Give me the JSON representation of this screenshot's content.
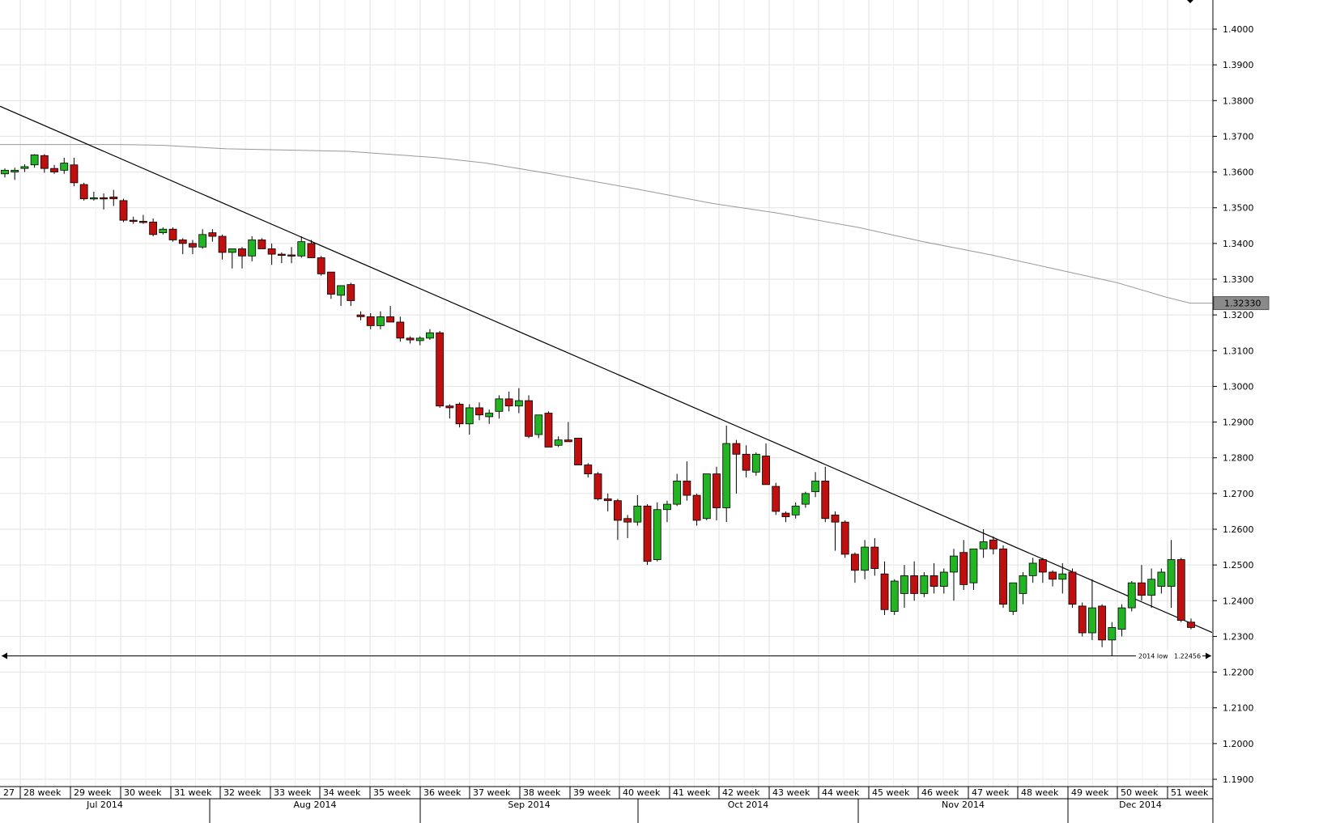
{
  "colors": {
    "up": "#22b422",
    "down": "#bf0f0f",
    "ma": "#999999",
    "trend": "#000000",
    "grid": "#e2e2e2",
    "price_box": "#8a8a8a"
  },
  "chart_data": {
    "type": "candlestick",
    "instrument_hint": "daily candles, weeks 27-51 2014",
    "ylim": [
      1.185,
      1.408
    ],
    "y_ticks": [
      "1.4000",
      "1.3900",
      "1.3800",
      "1.3700",
      "1.3600",
      "1.3500",
      "1.3400",
      "1.3300",
      "1.3200",
      "1.3100",
      "1.3000",
      "1.2900",
      "1.2800",
      "1.2700",
      "1.2600",
      "1.2500",
      "1.2400",
      "1.2300",
      "1.2200",
      "1.2100",
      "1.2000",
      "1.1900"
    ],
    "week_labels": [
      "27",
      "28 week",
      "29 week",
      "30 week",
      "31 week",
      "32 week",
      "33 week",
      "34 week",
      "35 week",
      "36 week",
      "37 week",
      "38 week",
      "39 week",
      "40 week",
      "41 week",
      "42 week",
      "43 week",
      "44 week",
      "45 week",
      "46 week",
      "47 week",
      "48 week",
      "49 week",
      "50 week",
      "51 week"
    ],
    "month_labels": [
      "Jul 2014",
      "Aug 2014",
      "Sep 2014",
      "Oct 2014",
      "Nov 2014",
      "Dec 2014"
    ],
    "candles": [
      [
        1.3595,
        1.361,
        1.3585,
        1.3605
      ],
      [
        1.36,
        1.3612,
        1.3578,
        1.3605
      ],
      [
        1.361,
        1.3622,
        1.36,
        1.3615
      ],
      [
        1.362,
        1.365,
        1.3612,
        1.3648
      ],
      [
        1.3646,
        1.365,
        1.3598,
        1.361
      ],
      [
        1.361,
        1.362,
        1.3595,
        1.36
      ],
      [
        1.3605,
        1.364,
        1.3595,
        1.3625
      ],
      [
        1.362,
        1.364,
        1.356,
        1.357
      ],
      [
        1.3565,
        1.357,
        1.352,
        1.3525
      ],
      [
        1.3525,
        1.3545,
        1.352,
        1.3528
      ],
      [
        1.3528,
        1.354,
        1.3495,
        1.3525
      ],
      [
        1.353,
        1.355,
        1.3505,
        1.3525
      ],
      [
        1.352,
        1.3525,
        1.346,
        1.3465
      ],
      [
        1.3465,
        1.3475,
        1.3455,
        1.3462
      ],
      [
        1.3462,
        1.348,
        1.3455,
        1.346
      ],
      [
        1.346,
        1.347,
        1.342,
        1.3425
      ],
      [
        1.343,
        1.3445,
        1.3425,
        1.344
      ],
      [
        1.344,
        1.3445,
        1.3405,
        1.341
      ],
      [
        1.341,
        1.3415,
        1.337,
        1.34
      ],
      [
        1.34,
        1.341,
        1.337,
        1.339
      ],
      [
        1.339,
        1.344,
        1.3385,
        1.3425
      ],
      [
        1.343,
        1.344,
        1.3405,
        1.342
      ],
      [
        1.342,
        1.3425,
        1.3355,
        1.3375
      ],
      [
        1.3375,
        1.338,
        1.333,
        1.3385
      ],
      [
        1.3385,
        1.339,
        1.333,
        1.3365
      ],
      [
        1.3365,
        1.342,
        1.335,
        1.341
      ],
      [
        1.341,
        1.3415,
        1.3385,
        1.3385
      ],
      [
        1.3385,
        1.34,
        1.334,
        1.337
      ],
      [
        1.337,
        1.3375,
        1.3345,
        1.3368
      ],
      [
        1.3368,
        1.339,
        1.3345,
        1.3365
      ],
      [
        1.3365,
        1.342,
        1.336,
        1.3405
      ],
      [
        1.34,
        1.341,
        1.336,
        1.336
      ],
      [
        1.336,
        1.3365,
        1.331,
        1.3315
      ],
      [
        1.332,
        1.332,
        1.3245,
        1.3258
      ],
      [
        1.3255,
        1.328,
        1.3225,
        1.3282
      ],
      [
        1.3285,
        1.329,
        1.3225,
        1.324
      ],
      [
        1.32,
        1.321,
        1.3185,
        1.3195
      ],
      [
        1.3195,
        1.3205,
        1.316,
        1.317
      ],
      [
        1.317,
        1.321,
        1.316,
        1.3195
      ],
      [
        1.3195,
        1.3225,
        1.318,
        1.318
      ],
      [
        1.318,
        1.3195,
        1.3125,
        1.3135
      ],
      [
        1.3135,
        1.314,
        1.312,
        1.313
      ],
      [
        1.3128,
        1.314,
        1.3115,
        1.3135
      ],
      [
        1.3135,
        1.316,
        1.313,
        1.315
      ],
      [
        1.315,
        1.3155,
        1.294,
        1.2945
      ],
      [
        1.2945,
        1.295,
        1.291,
        1.294
      ],
      [
        1.295,
        1.2955,
        1.2885,
        1.2895
      ],
      [
        1.2895,
        1.295,
        1.2865,
        1.294
      ],
      [
        1.294,
        1.2955,
        1.2905,
        1.292
      ],
      [
        1.2915,
        1.2935,
        1.2895,
        1.2925
      ],
      [
        1.293,
        1.2975,
        1.291,
        1.2965
      ],
      [
        1.2965,
        1.2985,
        1.293,
        1.2945
      ],
      [
        1.2945,
        1.2995,
        1.2925,
        1.296
      ],
      [
        1.296,
        1.2975,
        1.2855,
        1.286
      ],
      [
        1.2865,
        1.292,
        1.2855,
        1.292
      ],
      [
        1.2925,
        1.293,
        1.283,
        1.283
      ],
      [
        1.2835,
        1.286,
        1.283,
        1.285
      ],
      [
        1.285,
        1.29,
        1.2845,
        1.2845
      ],
      [
        1.2855,
        1.2855,
        1.278,
        1.278
      ],
      [
        1.278,
        1.2785,
        1.2745,
        1.2755
      ],
      [
        1.2755,
        1.276,
        1.268,
        1.2685
      ],
      [
        1.2685,
        1.27,
        1.265,
        1.268
      ],
      [
        1.268,
        1.2685,
        1.257,
        1.2625
      ],
      [
        1.263,
        1.264,
        1.2575,
        1.262
      ],
      [
        1.262,
        1.2695,
        1.261,
        1.2665
      ],
      [
        1.2665,
        1.267,
        1.25,
        1.251
      ],
      [
        1.2515,
        1.2675,
        1.251,
        1.2655
      ],
      [
        1.2655,
        1.268,
        1.262,
        1.267
      ],
      [
        1.267,
        1.2755,
        1.2665,
        1.2735
      ],
      [
        1.2735,
        1.279,
        1.268,
        1.2695
      ],
      [
        1.2695,
        1.27,
        1.261,
        1.2625
      ],
      [
        1.263,
        1.2755,
        1.2625,
        1.2755
      ],
      [
        1.2755,
        1.2775,
        1.2625,
        1.266
      ],
      [
        1.266,
        1.289,
        1.262,
        1.284
      ],
      [
        1.284,
        1.285,
        1.27,
        1.281
      ],
      [
        1.281,
        1.2835,
        1.2745,
        1.2765
      ],
      [
        1.276,
        1.2815,
        1.275,
        1.281
      ],
      [
        1.2805,
        1.284,
        1.2725,
        1.2725
      ],
      [
        1.272,
        1.273,
        1.264,
        1.265
      ],
      [
        1.2645,
        1.265,
        1.262,
        1.2635
      ],
      [
        1.264,
        1.2675,
        1.263,
        1.2665
      ],
      [
        1.267,
        1.2705,
        1.266,
        1.27
      ],
      [
        1.2705,
        1.276,
        1.269,
        1.2735
      ],
      [
        1.2735,
        1.2775,
        1.262,
        1.263
      ],
      [
        1.264,
        1.265,
        1.254,
        1.262
      ],
      [
        1.262,
        1.2625,
        1.252,
        1.253
      ],
      [
        1.253,
        1.2535,
        1.245,
        1.2485
      ],
      [
        1.2485,
        1.257,
        1.246,
        1.255
      ],
      [
        1.255,
        1.2575,
        1.247,
        1.249
      ],
      [
        1.2475,
        1.251,
        1.236,
        1.2375
      ],
      [
        1.237,
        1.246,
        1.236,
        1.2455
      ],
      [
        1.242,
        1.25,
        1.238,
        1.247
      ],
      [
        1.247,
        1.251,
        1.24,
        1.242
      ],
      [
        1.242,
        1.248,
        1.241,
        1.247
      ],
      [
        1.247,
        1.2505,
        1.242,
        1.244
      ],
      [
        1.244,
        1.249,
        1.242,
        1.248
      ],
      [
        1.248,
        1.2545,
        1.24,
        1.2525
      ],
      [
        1.2535,
        1.257,
        1.243,
        1.2445
      ],
      [
        1.245,
        1.2545,
        1.243,
        1.2545
      ],
      [
        1.2545,
        1.26,
        1.252,
        1.2565
      ],
      [
        1.257,
        1.258,
        1.253,
        1.2545
      ],
      [
        1.2545,
        1.2555,
        1.238,
        1.239
      ],
      [
        1.237,
        1.245,
        1.236,
        1.245
      ],
      [
        1.242,
        1.248,
        1.239,
        1.247
      ],
      [
        1.247,
        1.252,
        1.245,
        1.2505
      ],
      [
        1.2515,
        1.252,
        1.245,
        1.248
      ],
      [
        1.248,
        1.2485,
        1.244,
        1.246
      ],
      [
        1.246,
        1.2505,
        1.242,
        1.2475
      ],
      [
        1.248,
        1.249,
        1.238,
        1.239
      ],
      [
        1.2385,
        1.2395,
        1.23,
        1.231
      ],
      [
        1.231,
        1.246,
        1.229,
        1.238
      ],
      [
        1.2385,
        1.239,
        1.227,
        1.229
      ],
      [
        1.229,
        1.234,
        1.2246,
        1.2325
      ],
      [
        1.232,
        1.239,
        1.23,
        1.238
      ],
      [
        1.238,
        1.2455,
        1.237,
        1.245
      ],
      [
        1.245,
        1.25,
        1.24,
        1.2415
      ],
      [
        1.2415,
        1.249,
        1.238,
        1.246
      ],
      [
        1.244,
        1.249,
        1.242,
        1.248
      ],
      [
        1.244,
        1.257,
        1.238,
        1.2515
      ],
      [
        1.2515,
        1.252,
        1.234,
        1.2345
      ],
      [
        1.234,
        1.235,
        1.232,
        1.2325
      ]
    ],
    "moving_average": [
      [
        0,
        1.3677
      ],
      [
        150,
        1.3677
      ],
      [
        200,
        1.3675
      ],
      [
        280,
        1.3665
      ],
      [
        430,
        1.3658
      ],
      [
        540,
        1.364
      ],
      [
        600,
        1.3625
      ],
      [
        680,
        1.3595
      ],
      [
        780,
        1.3555
      ],
      [
        880,
        1.3512
      ],
      [
        960,
        1.3485
      ],
      [
        1060,
        1.3445
      ],
      [
        1140,
        1.3405
      ],
      [
        1220,
        1.337
      ],
      [
        1300,
        1.333
      ],
      [
        1380,
        1.329
      ],
      [
        1440,
        1.325
      ],
      [
        1470,
        1.3233
      ],
      [
        1498,
        1.3233
      ]
    ],
    "trendline": {
      "x1": 0,
      "y1": 1.3784,
      "x2": 1497,
      "y2": 1.2311
    },
    "support_line": {
      "value": 1.22456,
      "label": "2014 low",
      "value_label": "1.22456"
    },
    "last_price_label": "1.32330"
  }
}
